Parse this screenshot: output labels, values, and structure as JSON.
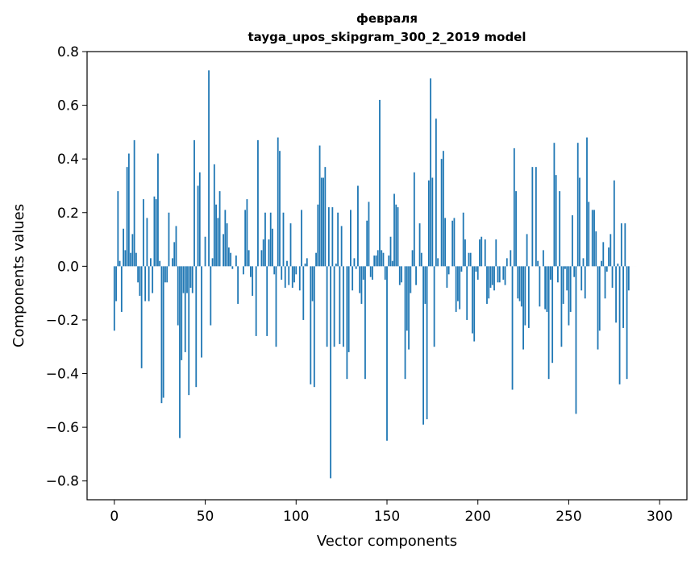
{
  "chart_data": {
    "type": "bar",
    "title": "февраля",
    "subtitle": "tayga_upos_skipgram_300_2_2019 model",
    "xlabel": "Vector components",
    "ylabel": "Components values",
    "xlim": [
      -15,
      315
    ],
    "ylim": [
      -0.87,
      0.8
    ],
    "xticks": [
      0,
      50,
      100,
      150,
      200,
      250,
      300
    ],
    "xtick_labels": [
      "0",
      "50",
      "100",
      "150",
      "200",
      "250",
      "300"
    ],
    "yticks": [
      -0.8,
      -0.6,
      -0.4,
      -0.2,
      0.0,
      0.2,
      0.4,
      0.6,
      0.8
    ],
    "ytick_labels": [
      "−0.8",
      "−0.6",
      "−0.4",
      "−0.2",
      "0.0",
      "0.2",
      "0.4",
      "0.6",
      "0.8"
    ],
    "bar_color": "#1f77b4",
    "values": [
      -0.24,
      -0.13,
      0.28,
      0.02,
      -0.17,
      0.14,
      0.06,
      0.37,
      0.42,
      0.05,
      0.12,
      0.47,
      0.05,
      -0.06,
      -0.11,
      -0.38,
      0.25,
      -0.13,
      0.18,
      -0.13,
      0.03,
      -0.1,
      0.26,
      0.25,
      0.42,
      0.02,
      -0.51,
      -0.49,
      -0.06,
      -0.06,
      0.2,
      0.0,
      0.03,
      0.09,
      0.15,
      -0.22,
      -0.64,
      -0.35,
      -0.1,
      -0.32,
      -0.1,
      -0.48,
      -0.08,
      -0.1,
      0.47,
      -0.45,
      0.3,
      0.35,
      -0.34,
      0.0,
      0.11,
      0.0,
      0.73,
      -0.22,
      0.03,
      0.38,
      0.23,
      0.18,
      0.28,
      0.0,
      0.12,
      0.21,
      0.16,
      0.07,
      0.05,
      -0.01,
      0.0,
      0.04,
      -0.14,
      0.0,
      0.0,
      -0.03,
      0.21,
      0.25,
      0.06,
      -0.04,
      -0.11,
      0.0,
      -0.26,
      0.47,
      0.0,
      0.06,
      0.1,
      0.2,
      -0.26,
      0.1,
      0.2,
      0.14,
      -0.03,
      -0.3,
      0.48,
      0.43,
      -0.05,
      0.2,
      -0.08,
      0.02,
      -0.07,
      0.16,
      -0.08,
      -0.06,
      -0.03,
      0.0,
      -0.09,
      0.21,
      -0.2,
      0.01,
      0.03,
      0.0,
      -0.44,
      -0.13,
      -0.45,
      0.05,
      0.23,
      0.45,
      0.33,
      0.33,
      0.37,
      -0.3,
      0.22,
      -0.79,
      0.22,
      -0.3,
      0.01,
      0.2,
      -0.29,
      0.15,
      -0.3,
      0.0,
      -0.42,
      -0.32,
      0.21,
      -0.09,
      0.03,
      -0.01,
      0.3,
      -0.1,
      -0.14,
      -0.05,
      -0.42,
      0.17,
      0.24,
      -0.04,
      -0.05,
      0.04,
      0.04,
      0.06,
      0.62,
      0.06,
      0.05,
      -0.05,
      -0.65,
      0.04,
      0.11,
      0.02,
      0.27,
      0.23,
      0.22,
      -0.07,
      -0.06,
      0.0,
      -0.42,
      -0.24,
      -0.31,
      -0.1,
      0.06,
      0.35,
      -0.07,
      0.0,
      0.16,
      0.05,
      -0.59,
      -0.14,
      -0.57,
      0.32,
      0.7,
      0.33,
      -0.3,
      0.55,
      0.03,
      0.0,
      0.4,
      0.43,
      0.18,
      -0.08,
      -0.03,
      0.0,
      0.17,
      0.18,
      -0.17,
      -0.13,
      -0.16,
      -0.02,
      0.2,
      0.1,
      -0.2,
      0.05,
      0.05,
      -0.25,
      -0.28,
      -0.02,
      -0.05,
      0.1,
      0.11,
      0.0,
      0.1,
      -0.14,
      -0.12,
      -0.08,
      -0.07,
      -0.09,
      0.1,
      -0.06,
      -0.06,
      0.0,
      -0.05,
      -0.07,
      0.03,
      0.0,
      0.06,
      -0.46,
      0.44,
      0.28,
      -0.12,
      -0.13,
      -0.15,
      -0.31,
      -0.22,
      0.12,
      -0.23,
      0.0,
      0.37,
      0.0,
      0.37,
      0.02,
      -0.15,
      0.0,
      0.06,
      -0.16,
      -0.17,
      -0.42,
      -0.05,
      -0.36,
      0.46,
      0.34,
      -0.06,
      0.28,
      -0.3,
      -0.14,
      -0.01,
      -0.09,
      -0.22,
      -0.17,
      0.19,
      -0.04,
      -0.55,
      0.46,
      0.33,
      -0.09,
      0.03,
      -0.12,
      0.48,
      0.24,
      0.0,
      0.21,
      0.21,
      0.13,
      -0.31,
      -0.24,
      0.02,
      0.09,
      -0.12,
      -0.02,
      0.07,
      0.12,
      -0.08,
      0.32,
      -0.21,
      0.01,
      -0.44,
      0.16,
      -0.23,
      0.16,
      -0.42,
      -0.09,
      0.0,
      0.0,
      0.0,
      0.0
    ]
  }
}
